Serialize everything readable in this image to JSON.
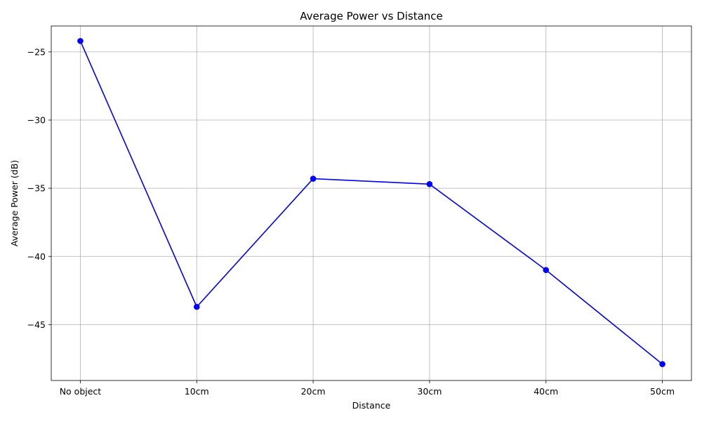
{
  "chart_data": {
    "type": "line",
    "title": "Average Power vs Distance",
    "xlabel": "Distance",
    "ylabel": "Average Power (dB)",
    "categories": [
      "No object",
      "10cm",
      "20cm",
      "30cm",
      "40cm",
      "50cm"
    ],
    "series": [
      {
        "values": [
          -24.2,
          -43.7,
          -34.3,
          -34.7,
          -41.0,
          -47.9
        ],
        "color": "#0000ff",
        "marker": "circle"
      }
    ],
    "ylim": [
      -49.1,
      -23.1
    ],
    "yticks": [
      -25,
      -30,
      -35,
      -40,
      -45
    ],
    "ytick_labels": [
      "−25",
      "−30",
      "−35",
      "−40",
      "−45"
    ],
    "grid": true
  }
}
